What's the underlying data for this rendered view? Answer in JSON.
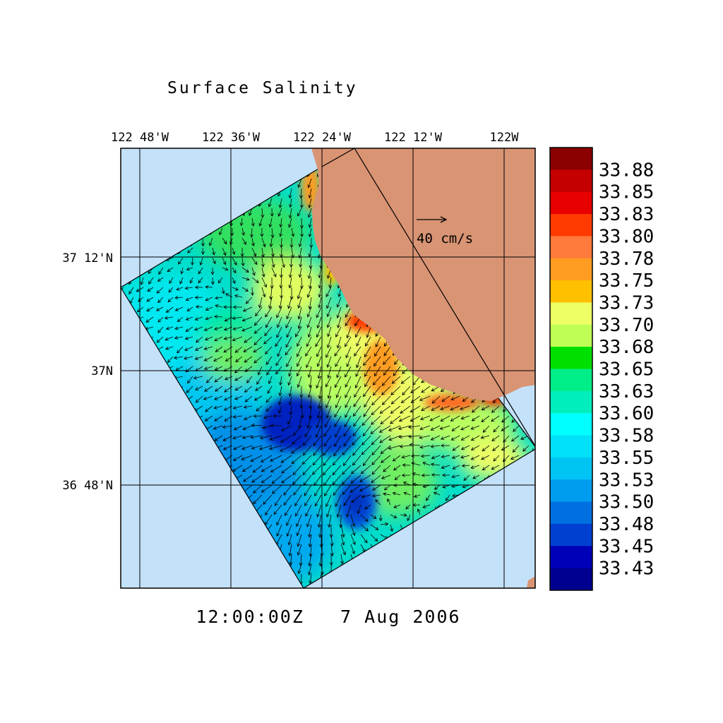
{
  "title": "Surface Salinity",
  "timestamp": "12:00:00Z   7 Aug 2006",
  "scale_label": "40 cm/s",
  "x_ticks": [
    "122 48'W",
    "122 36'W",
    "122 24'W",
    "122 12'W",
    "122W"
  ],
  "y_ticks": [
    "37 12'N",
    "37N",
    "36 48'N"
  ],
  "colorbar": {
    "labels": [
      "33.88",
      "33.85",
      "33.83",
      "33.80",
      "33.78",
      "33.75",
      "33.73",
      "33.70",
      "33.68",
      "33.65",
      "33.63",
      "33.60",
      "33.58",
      "33.55",
      "33.53",
      "33.50",
      "33.48",
      "33.45",
      "33.43"
    ],
    "colors": [
      "#8b0000",
      "#c40000",
      "#e80000",
      "#ff3a00",
      "#ff7a3c",
      "#ff9c22",
      "#ffc000",
      "#eeff66",
      "#bfff55",
      "#00e000",
      "#00ee88",
      "#00eebb",
      "#00ffff",
      "#00e0f8",
      "#00c4f4",
      "#009cf0",
      "#0070e0",
      "#0040d0",
      "#0000b8",
      "#000090"
    ]
  },
  "colors": {
    "ocean": "#c4e1fa",
    "land": "#d99474"
  }
}
